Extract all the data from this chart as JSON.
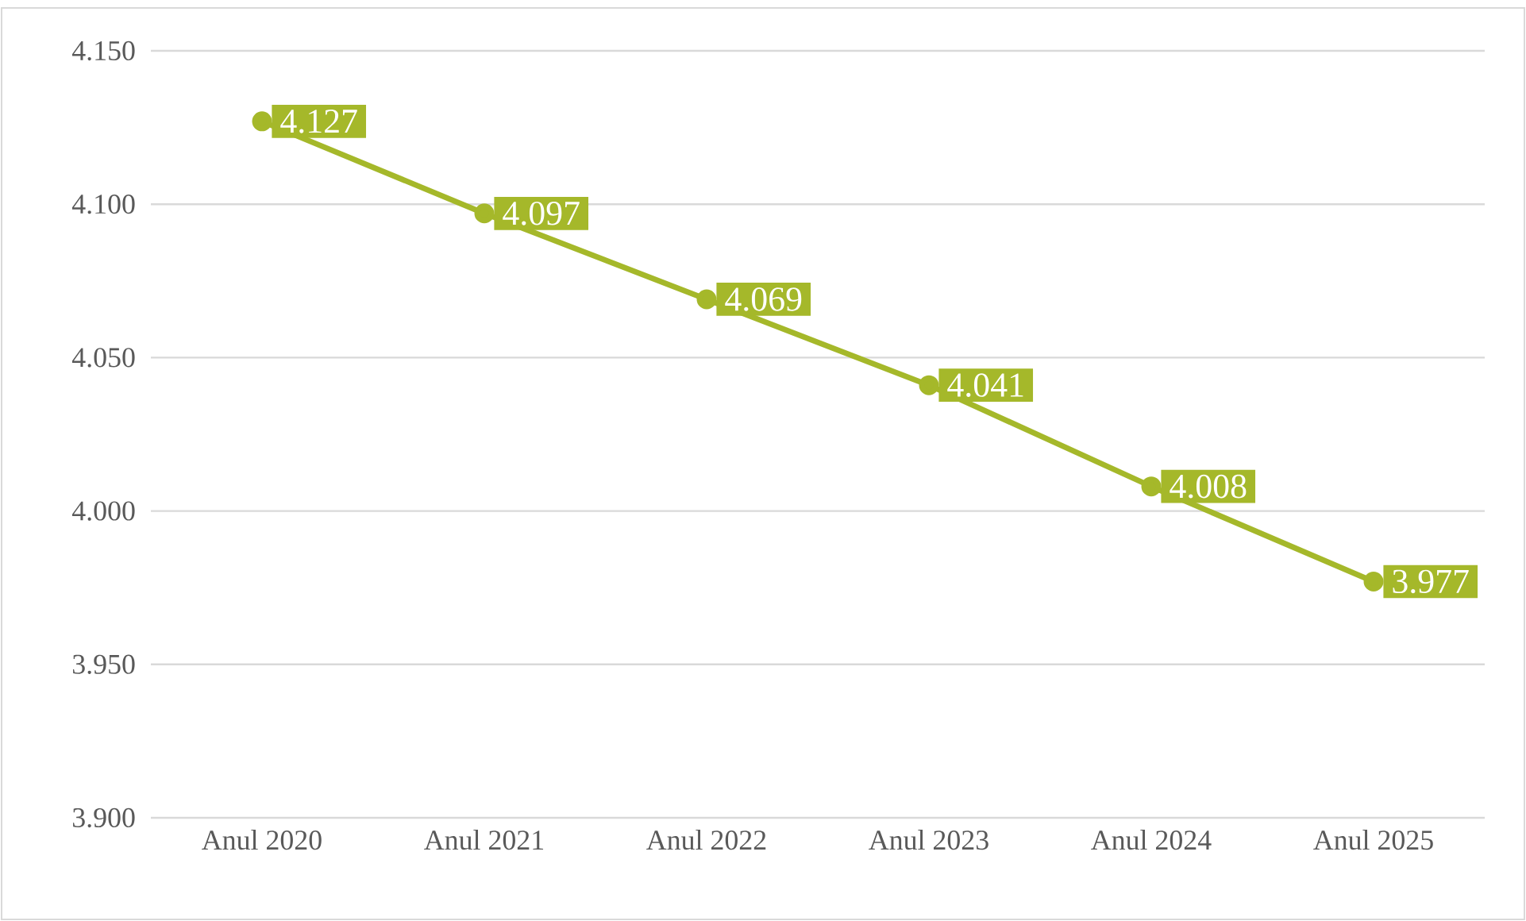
{
  "chart_data": {
    "type": "line",
    "categories": [
      "Anul 2020",
      "Anul 2021",
      "Anul 2022",
      "Anul 2023",
      "Anul 2024",
      "Anul 2025"
    ],
    "series": [
      {
        "color": "#a5b82a",
        "values": [
          4127,
          4097,
          4069,
          4041,
          4008,
          3977
        ],
        "value_labels": [
          "4.127",
          "4.097",
          "4.069",
          "4.041",
          "4.008",
          "3.977"
        ]
      }
    ],
    "ylim": [
      3900,
      4150
    ],
    "yticks": [
      {
        "value": 3900,
        "label": "3.900"
      },
      {
        "value": 3950,
        "label": "3.950"
      },
      {
        "value": 4000,
        "label": "4.000"
      },
      {
        "value": 4050,
        "label": "4.050"
      },
      {
        "value": 4100,
        "label": "4.100"
      },
      {
        "value": 4150,
        "label": "4.150"
      }
    ],
    "grid": "y",
    "marker": "circle",
    "line_style": "solid"
  }
}
